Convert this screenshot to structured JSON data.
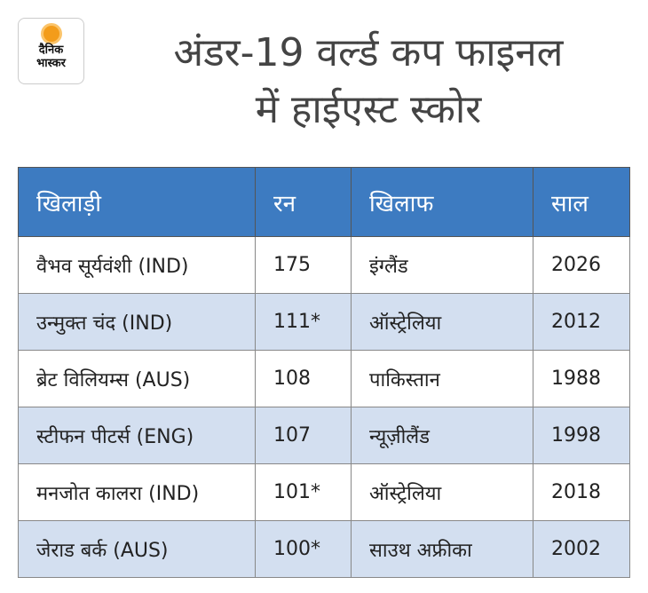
{
  "logo": {
    "line1": "दैनिक",
    "line2": "भास्कर"
  },
  "title": {
    "line1": "अंडर-19 वर्ल्ड कप फाइनल",
    "line2": "में हाईएस्ट स्कोर"
  },
  "table": {
    "headers": [
      "खिलाड़ी",
      "रन",
      "खिलाफ",
      "साल"
    ],
    "rows": [
      [
        "वैभव सूर्यवंशी (IND)",
        "175",
        "इंग्लैंड",
        "2026"
      ],
      [
        "उन्मुक्त चंद (IND)",
        "111*",
        "ऑस्ट्रेलिया",
        "2012"
      ],
      [
        "ब्रेट विलियम्स (AUS)",
        "108",
        "पाकिस्तान",
        "1988"
      ],
      [
        "स्टीफन पीटर्स (ENG)",
        "107",
        "न्यूज़ीलैंड",
        "1998"
      ],
      [
        "मनजोत कालरा (IND)",
        "101*",
        "ऑस्ट्रेलिया",
        "2018"
      ],
      [
        "जेराड बर्क (AUS)",
        "100*",
        "साउथ अफ्रीका",
        "2002"
      ]
    ]
  }
}
